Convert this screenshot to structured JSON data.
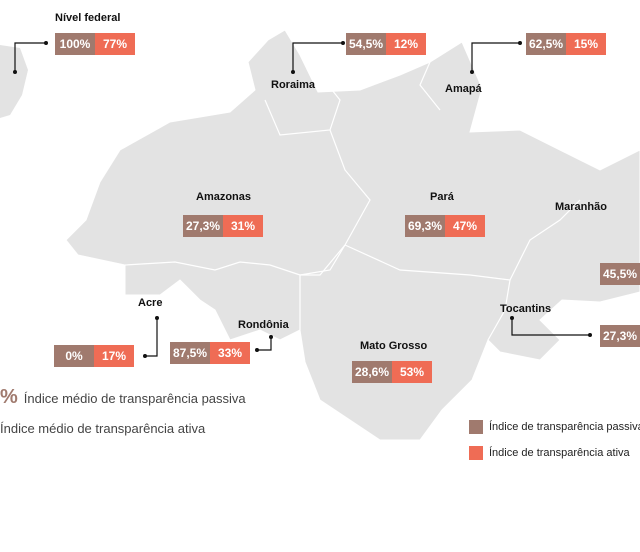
{
  "colors": {
    "passive": "#a07a6e",
    "active": "#ef6c55",
    "map": "#e3e3e3"
  },
  "regions": {
    "federal": {
      "name": "Nível federal",
      "passive": "100%",
      "active": "77%"
    },
    "roraima": {
      "name": "Roraima",
      "passive": "54,5%",
      "active": "12%"
    },
    "amapa": {
      "name": "Amapá",
      "passive": "62,5%",
      "active": "15%"
    },
    "amazonas": {
      "name": "Amazonas",
      "passive": "27,3%",
      "active": "31%"
    },
    "para": {
      "name": "Pará",
      "passive": "69,3%",
      "active": "47%"
    },
    "maranhao": {
      "name": "Maranhão",
      "passive": "45,5%"
    },
    "acre": {
      "name": "Acre",
      "passive": "0%",
      "active": "17%"
    },
    "rondonia": {
      "name": "Rondônia",
      "passive": "87,5%",
      "active": "33%"
    },
    "mato_grosso": {
      "name": "Mato Grosso",
      "passive": "28,6%",
      "active": "53%"
    },
    "tocantins": {
      "name": "Tocantins",
      "passive": "27,3%"
    }
  },
  "legend_left": {
    "symbol": "%",
    "passive": "Índice médio de transparência passiva",
    "active": "Índice médio de transparência ativa"
  },
  "legend_right": {
    "passive": "Índice de transparência passiva",
    "active": "Índice de transparência ativa"
  }
}
